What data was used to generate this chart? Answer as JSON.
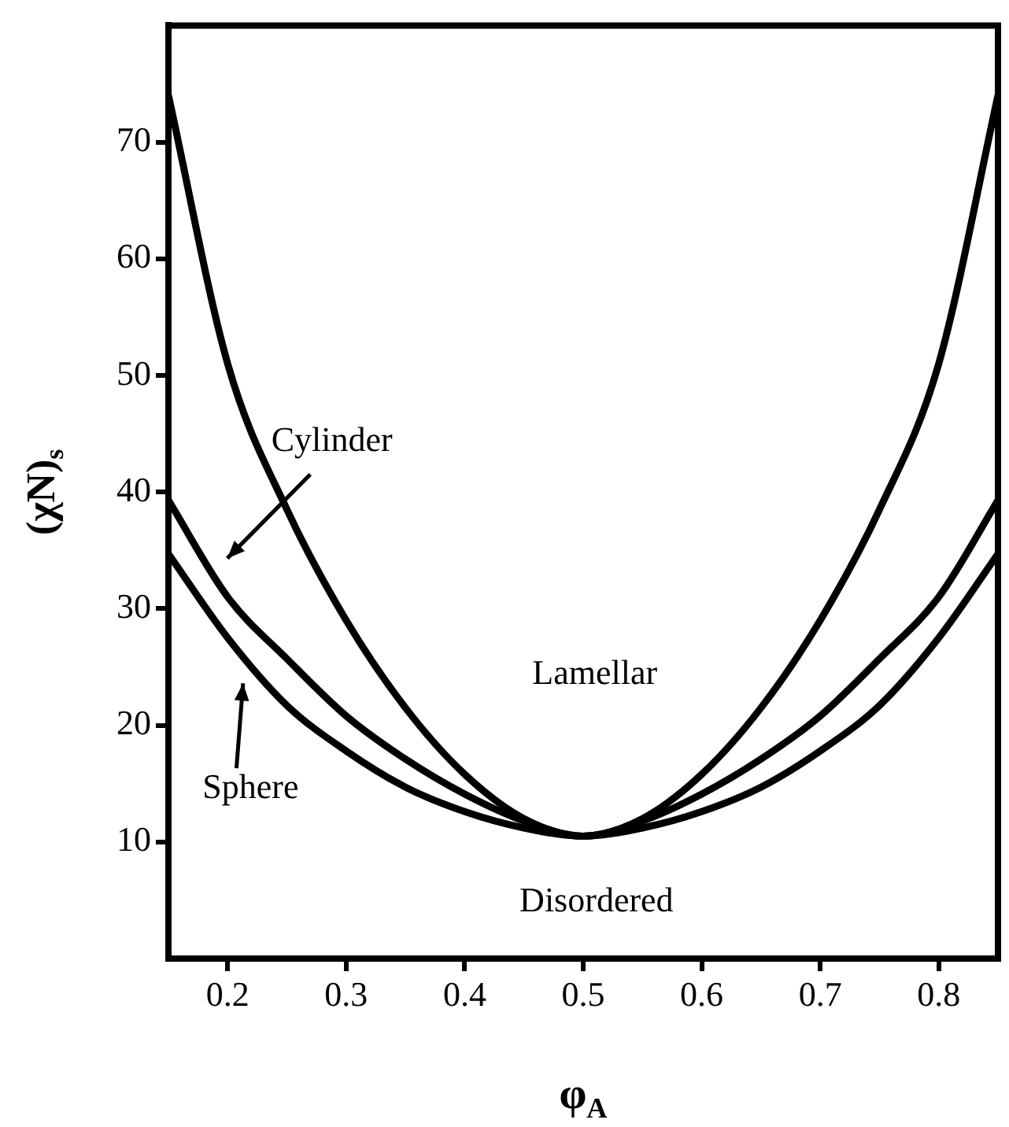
{
  "chart_data": {
    "type": "line",
    "xlabel": "φ$_{A}$",
    "ylabel": "(χN)$_{s}$",
    "xlim": [
      0.15,
      0.85
    ],
    "xticks": [
      0.2,
      0.3,
      0.4,
      0.5,
      0.6,
      0.7,
      0.8
    ],
    "ylim": [
      0,
      80
    ],
    "yticks": [
      10,
      20,
      30,
      40,
      50,
      60,
      70
    ],
    "grid": false,
    "legend": false,
    "marker": "none",
    "line_style": "solid",
    "series": [
      {
        "color": "#000000",
        "x": [
          0.15,
          0.2,
          0.25,
          0.3,
          0.35,
          0.4,
          0.45,
          0.5,
          0.55,
          0.6,
          0.65,
          0.7,
          0.75,
          0.8,
          0.85
        ],
        "values": [
          74,
          51,
          38.5,
          29,
          21.5,
          15.8,
          12,
          10.5,
          12,
          15.8,
          21.5,
          29,
          38.5,
          51,
          74
        ]
      },
      {
        "color": "#000000",
        "x": [
          0.15,
          0.2,
          0.25,
          0.3,
          0.35,
          0.4,
          0.45,
          0.5,
          0.55,
          0.6,
          0.65,
          0.7,
          0.75,
          0.8,
          0.85
        ],
        "values": [
          39.3,
          31,
          25.7,
          20.8,
          17.1,
          14.1,
          11.8,
          10.5,
          11.8,
          14.1,
          17.1,
          20.8,
          25.7,
          31,
          39.3
        ]
      },
      {
        "color": "#000000",
        "x": [
          0.15,
          0.2,
          0.25,
          0.3,
          0.35,
          0.4,
          0.45,
          0.5,
          0.55,
          0.6,
          0.65,
          0.7,
          0.75,
          0.8,
          0.85
        ],
        "values": [
          34.7,
          27.5,
          21.7,
          17.8,
          14.7,
          12.6,
          11.2,
          10.5,
          11.2,
          12.6,
          14.7,
          17.8,
          21.7,
          27.5,
          34.7
        ]
      }
    ],
    "annotations": [
      "Cylinder",
      "Sphere",
      "Lamellar",
      "Disordered"
    ]
  }
}
